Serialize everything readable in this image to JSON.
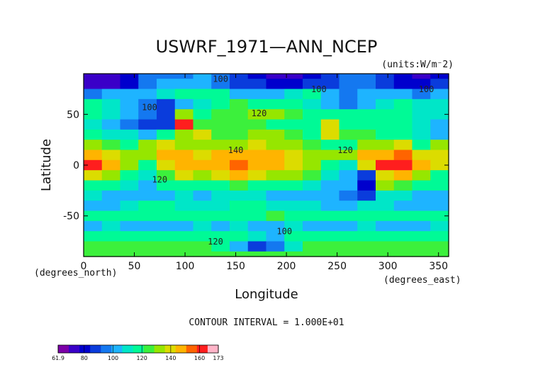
{
  "chart_data": {
    "type": "heatmap",
    "title": "USWRF_1971—ANN_NCEP",
    "units_label": "(units:W/m⁻2)",
    "xlabel": "Longitude",
    "ylabel": "Latitude",
    "x_unit_label": "(degrees_east)",
    "y_unit_label": "(degrees_north)",
    "xlim": [
      0,
      360
    ],
    "ylim": [
      -90,
      90
    ],
    "x_ticks": [
      0,
      50,
      100,
      150,
      200,
      250,
      300,
      350
    ],
    "y_ticks": [
      -50,
      0,
      50
    ],
    "contour_interval_text": "CONTOUR INTERVAL = 1.000E+01",
    "contour_labels": [
      {
        "text": "100",
        "lon": 135,
        "lat": 82
      },
      {
        "text": "100",
        "lon": 232,
        "lat": 72
      },
      {
        "text": "100",
        "lon": 338,
        "lat": 72
      },
      {
        "text": "100",
        "lon": 65,
        "lat": 54
      },
      {
        "text": "120",
        "lon": 173,
        "lat": 48
      },
      {
        "text": "140",
        "lon": 150,
        "lat": 12
      },
      {
        "text": "120",
        "lon": 258,
        "lat": 12
      },
      {
        "text": "120",
        "lon": 75,
        "lat": -17
      },
      {
        "text": "100",
        "lon": 198,
        "lat": -68
      },
      {
        "text": "120",
        "lon": 130,
        "lat": -78
      }
    ],
    "colorbar": {
      "min": 61.9,
      "max": 173,
      "tick_labels": [
        "61.9",
        "80",
        "100",
        "120",
        "140",
        "160",
        "173"
      ],
      "colors": [
        "#7b00a8",
        "#3a00c8",
        "#0000cd",
        "#0a3cdc",
        "#1478f0",
        "#1eb4ff",
        "#00e6c8",
        "#00fa96",
        "#3cf03c",
        "#96e600",
        "#dcdc00",
        "#ffb400",
        "#ff6400",
        "#ff1e1e",
        "#ffb4c8"
      ]
    },
    "bands": [
      {
        "lat": 90,
        "vals": [
          70,
          75,
          80,
          95,
          95,
          95,
          100,
          95,
          85,
          80,
          75,
          75,
          80,
          85,
          95,
          95,
          85,
          80,
          75,
          80
        ]
      },
      {
        "lat": 80,
        "vals": [
          70,
          75,
          80,
          95,
          100,
          100,
          100,
          95,
          90,
          85,
          80,
          80,
          85,
          90,
          95,
          95,
          85,
          80,
          80,
          85
        ]
      },
      {
        "lat": 70,
        "vals": [
          95,
          100,
          105,
          100,
          110,
          120,
          120,
          115,
          105,
          105,
          105,
          110,
          115,
          105,
          95,
          100,
          105,
          100,
          95,
          100
        ]
      },
      {
        "lat": 60,
        "vals": [
          120,
          110,
          100,
          95,
          90,
          100,
          110,
          120,
          125,
          120,
          115,
          115,
          110,
          100,
          95,
          105,
          110,
          115,
          110,
          110
        ]
      },
      {
        "lat": 50,
        "vals": [
          115,
          110,
          100,
          95,
          85,
          130,
          120,
          125,
          125,
          130,
          130,
          125,
          120,
          115,
          120,
          120,
          120,
          115,
          110,
          110
        ]
      },
      {
        "lat": 40,
        "vals": [
          110,
          100,
          95,
          90,
          85,
          160,
          125,
          125,
          125,
          125,
          120,
          120,
          120,
          140,
          120,
          120,
          120,
          115,
          110,
          105
        ]
      },
      {
        "lat": 30,
        "vals": [
          115,
          110,
          110,
          100,
          120,
          130,
          140,
          125,
          125,
          130,
          130,
          125,
          120,
          140,
          125,
          125,
          120,
          115,
          110,
          100
        ]
      },
      {
        "lat": 20,
        "vals": [
          130,
          125,
          120,
          130,
          140,
          135,
          130,
          130,
          135,
          140,
          135,
          130,
          125,
          120,
          120,
          130,
          135,
          140,
          120,
          130
        ]
      },
      {
        "lat": 10,
        "vals": [
          150,
          140,
          130,
          135,
          150,
          145,
          140,
          145,
          150,
          150,
          145,
          140,
          135,
          130,
          135,
          145,
          150,
          155,
          140,
          140
        ]
      },
      {
        "lat": 0,
        "vals": [
          165,
          150,
          130,
          120,
          140,
          150,
          145,
          150,
          155,
          150,
          145,
          140,
          135,
          120,
          110,
          140,
          160,
          165,
          150,
          140
        ]
      },
      {
        "lat": -10,
        "vals": [
          140,
          130,
          120,
          110,
          125,
          140,
          135,
          140,
          150,
          140,
          135,
          130,
          125,
          110,
          100,
          90,
          140,
          150,
          130,
          120
        ]
      },
      {
        "lat": -20,
        "vals": [
          120,
          115,
          110,
          105,
          115,
          120,
          115,
          120,
          125,
          120,
          120,
          115,
          110,
          105,
          100,
          80,
          130,
          125,
          120,
          115
        ]
      },
      {
        "lat": -30,
        "vals": [
          110,
          105,
          100,
          100,
          105,
          110,
          105,
          110,
          110,
          110,
          105,
          105,
          100,
          100,
          95,
          90,
          110,
          110,
          105,
          105
        ]
      },
      {
        "lat": -40,
        "vals": [
          105,
          105,
          110,
          115,
          115,
          110,
          110,
          110,
          115,
          115,
          110,
          110,
          110,
          105,
          105,
          110,
          110,
          105,
          105,
          105
        ]
      },
      {
        "lat": -50,
        "vals": [
          115,
          120,
          120,
          115,
          120,
          120,
          115,
          120,
          120,
          120,
          125,
          120,
          120,
          120,
          115,
          120,
          120,
          120,
          120,
          120
        ]
      },
      {
        "lat": -60,
        "vals": [
          105,
          110,
          105,
          105,
          105,
          105,
          110,
          105,
          110,
          105,
          100,
          110,
          105,
          105,
          105,
          110,
          105,
          100,
          105,
          110
        ]
      },
      {
        "lat": -70,
        "vals": [
          120,
          120,
          120,
          115,
          120,
          120,
          115,
          120,
          115,
          110,
          100,
          115,
          120,
          120,
          120,
          115,
          120,
          120,
          120,
          120
        ]
      },
      {
        "lat": -80,
        "vals": [
          125,
          125,
          125,
          125,
          125,
          125,
          125,
          120,
          100,
          85,
          95,
          110,
          125,
          125,
          125,
          125,
          125,
          125,
          125,
          125
        ]
      },
      {
        "lat": -90,
        "vals": [
          125,
          125,
          125,
          125,
          125,
          125,
          125,
          125,
          125,
          125,
          125,
          125,
          125,
          125,
          125,
          125,
          125,
          125,
          125,
          125
        ]
      }
    ]
  }
}
